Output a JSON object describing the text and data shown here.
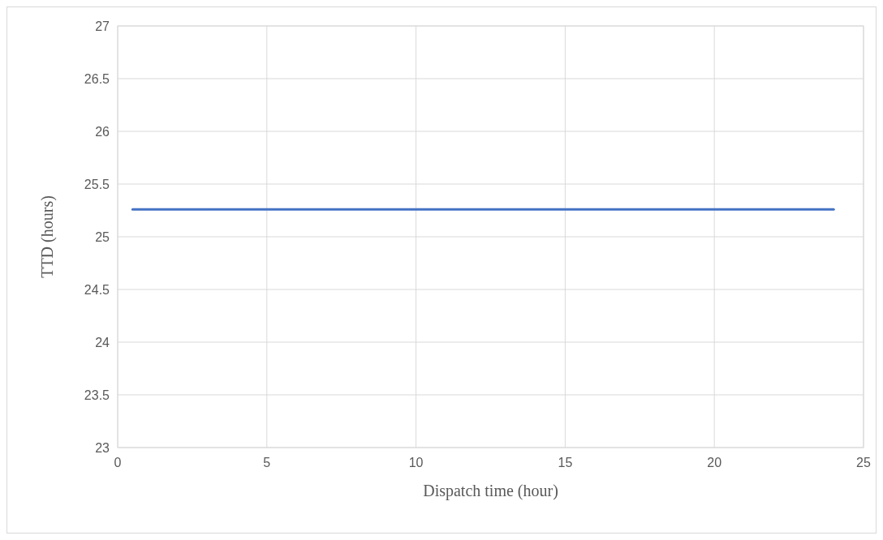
{
  "chart_data": {
    "type": "line",
    "xlabel": "Dispatch time (hour)",
    "ylabel": "TTD (hours)",
    "x": [
      0.5,
      24
    ],
    "series": [
      {
        "color": "#4472c4",
        "values": [
          25.26,
          25.26
        ]
      }
    ],
    "xlim": [
      0,
      25
    ],
    "xticks": [
      0,
      5,
      10,
      15,
      20,
      25
    ],
    "ylim": [
      23,
      27
    ],
    "yticks": [
      23,
      23.5,
      24,
      24.5,
      25,
      25.5,
      26,
      26.5,
      27
    ],
    "grid": true,
    "marker": "none",
    "line_style": "solid"
  }
}
